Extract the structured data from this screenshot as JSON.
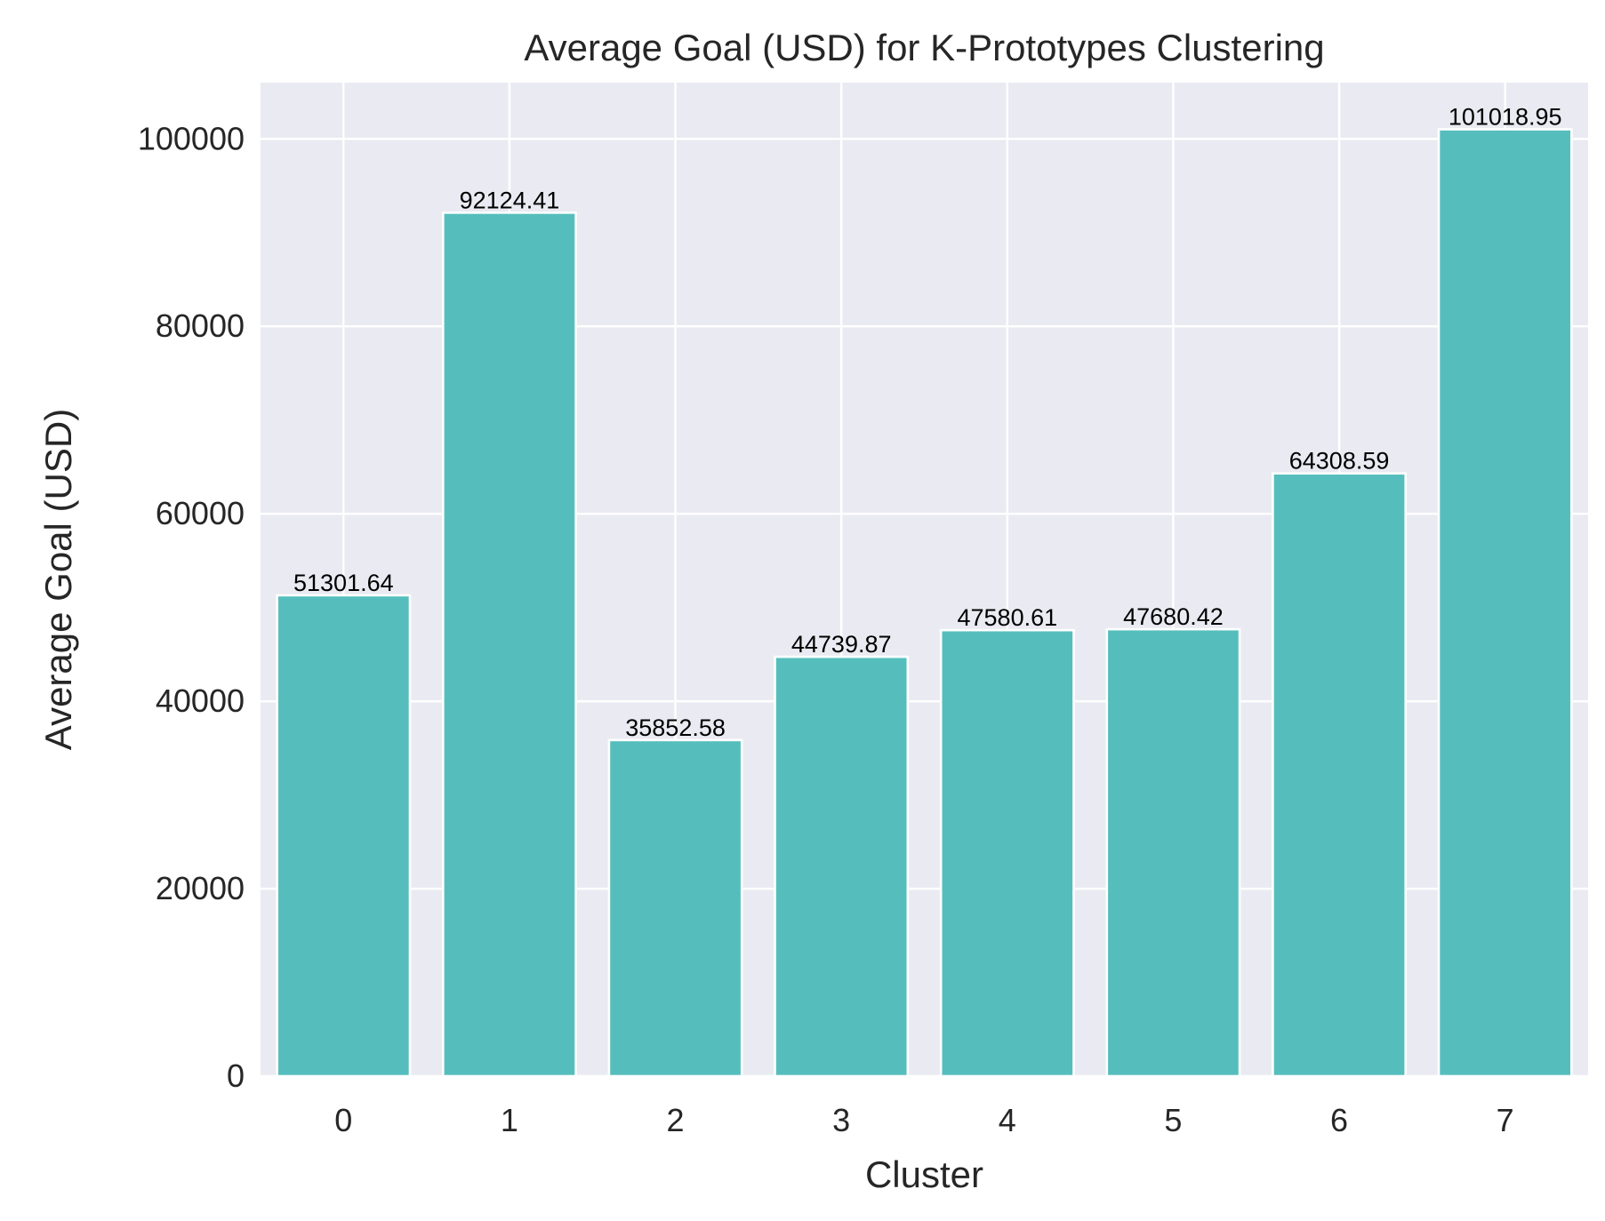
{
  "chart_data": {
    "type": "bar",
    "title": "Average Goal (USD) for K-Prototypes Clustering",
    "xlabel": "Cluster",
    "ylabel": "Average Goal (USD)",
    "categories": [
      "0",
      "1",
      "2",
      "3",
      "4",
      "5",
      "6",
      "7"
    ],
    "values": [
      51301.64,
      92124.41,
      35852.58,
      44739.87,
      47580.61,
      47680.42,
      64308.59,
      101018.95
    ],
    "data_labels": [
      "51301.64",
      "92124.41",
      "35852.58",
      "44739.87",
      "47580.61",
      "47680.42",
      "64308.59",
      "101018.95"
    ],
    "ylim": [
      0,
      106000
    ],
    "yticks": [
      0,
      20000,
      40000,
      60000,
      80000,
      100000
    ],
    "ytick_labels": [
      "0",
      "20000",
      "40000",
      "60000",
      "80000",
      "100000"
    ],
    "grid": true,
    "legend": "none",
    "colors": {
      "bar": "#55BEBD",
      "plot_background": "#EAEAF2",
      "grid": "#FFFFFF",
      "text": "#262626"
    }
  }
}
